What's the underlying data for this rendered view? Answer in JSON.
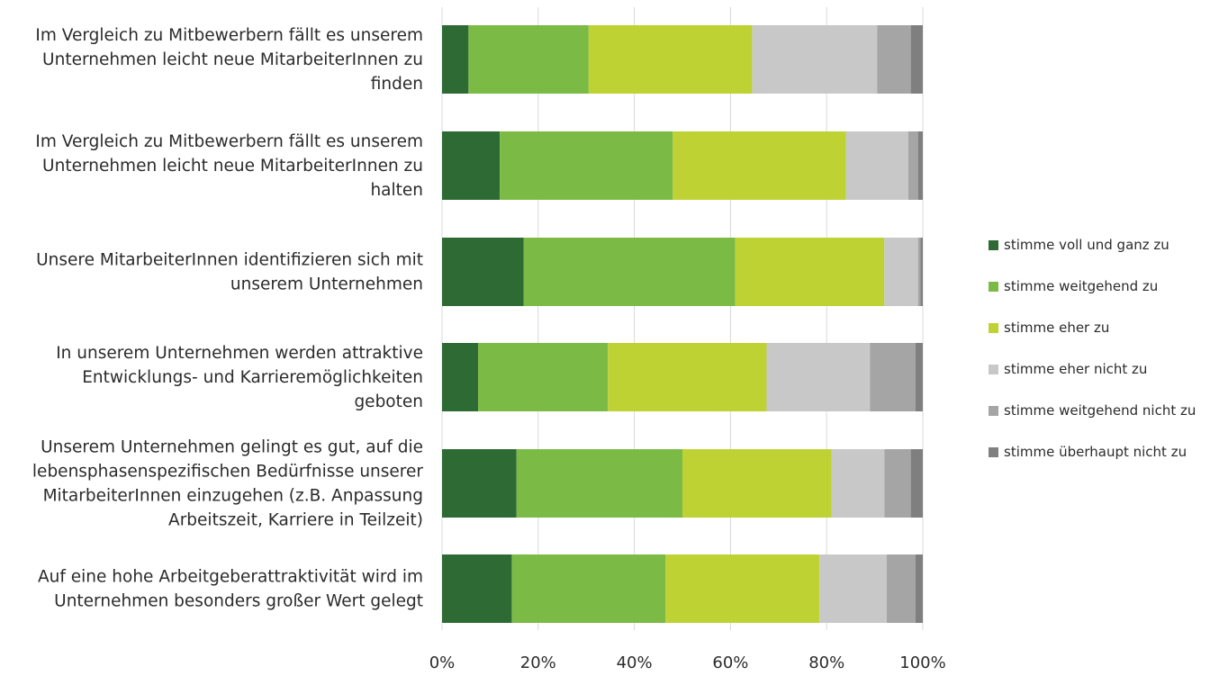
{
  "chart_data": {
    "type": "bar",
    "orientation": "horizontal",
    "stacked": "percent",
    "categories": [
      [
        "Im Vergleich zu Mitbewerbern fällt es unserem",
        "Unternehmen leicht neue MitarbeiterInnen zu",
        "finden"
      ],
      [
        "Im Vergleich zu Mitbewerbern fällt es unserem",
        "Unternehmen leicht neue MitarbeiterInnen zu",
        "halten"
      ],
      [
        "Unsere MitarbeiterInnen identifizieren sich mit",
        "unserem Unternehmen"
      ],
      [
        "In unserem Unternehmen werden attraktive",
        "Entwicklungs- und Karrieremöglichkeiten",
        "geboten"
      ],
      [
        "Unserem Unternehmen gelingt es gut, auf die",
        "lebensphasenspezifischen Bedürfnisse unserer",
        "MitarbeiterInnen einzugehen (z.B. Anpassung",
        "Arbeitszeit, Karriere in Teilzeit)"
      ],
      [
        "Auf eine hohe Arbeitgeberattraktivität wird im",
        "Unternehmen besonders großer Wert gelegt"
      ]
    ],
    "series": [
      {
        "name": "stimme voll und ganz zu",
        "color": "#2e6b34",
        "values": [
          5.5,
          12,
          17,
          7.5,
          15.5,
          14.5
        ]
      },
      {
        "name": "stimme weitgehend zu",
        "color": "#7bbb45",
        "values": [
          25,
          36,
          44,
          27,
          34.5,
          32
        ]
      },
      {
        "name": "stimme eher zu",
        "color": "#bfd233",
        "values": [
          34,
          36,
          31,
          33,
          31,
          32
        ]
      },
      {
        "name": "stimme eher nicht zu",
        "color": "#c8c8c8",
        "values": [
          26,
          13,
          7,
          21.5,
          11,
          14
        ]
      },
      {
        "name": "stimme weitgehend nicht zu",
        "color": "#a5a5a5",
        "values": [
          7,
          2,
          0.5,
          9.5,
          5.5,
          6
        ]
      },
      {
        "name": "stimme überhaupt nicht zu",
        "color": "#7f7f7f",
        "values": [
          2.5,
          1,
          0.5,
          1.5,
          2.5,
          1.5
        ]
      }
    ],
    "x_ticks": [
      "0%",
      "20%",
      "40%",
      "60%",
      "80%",
      "100%"
    ],
    "xlim": [
      0,
      100
    ],
    "title": "",
    "xlabel": "",
    "ylabel": "",
    "grid": "vertical",
    "legend_placement": "right"
  }
}
